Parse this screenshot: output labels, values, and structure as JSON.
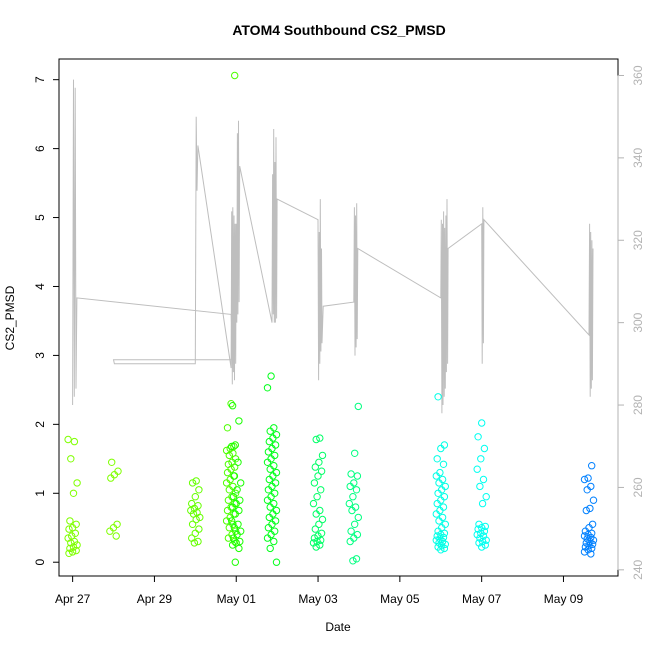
{
  "chart_data": {
    "type": "scatter",
    "title": "ATOM4 Southbound CS2_PMSD",
    "xlabel": "Date",
    "ylabel": "CS2_PMSD",
    "x_unit": "date",
    "xlim": [
      "2021-04-26T16:00",
      "2021-05-10T08:00"
    ],
    "ylim": [
      -0.2,
      7.3
    ],
    "y2lim": [
      238.5,
      364
    ],
    "x_ticks": [
      {
        "value": "2021-04-27",
        "label": "Apr 27"
      },
      {
        "value": "2021-04-29",
        "label": "Apr 29"
      },
      {
        "value": "2021-05-01",
        "label": "May 01"
      },
      {
        "value": "2021-05-03",
        "label": "May 03"
      },
      {
        "value": "2021-05-05",
        "label": "May 05"
      },
      {
        "value": "2021-05-07",
        "label": "May 07"
      },
      {
        "value": "2021-05-09",
        "label": "May 09"
      }
    ],
    "y_ticks": [
      0,
      1,
      2,
      3,
      4,
      5,
      6,
      7
    ],
    "y2_ticks": [
      240,
      260,
      280,
      300,
      320,
      340,
      360
    ],
    "grid": false,
    "legend": "none",
    "colors": {
      "line": "#bebebe",
      "right_axis": "#b3b3b3",
      "axis": "#000000"
    },
    "series": [
      {
        "kind": "points",
        "axis": "left",
        "clusters": [
          {
            "date": "2021-04-27T00:00",
            "color": "#7fff00",
            "y": [
              1.78,
              1.75,
              1.5,
              1.15,
              1.0,
              0.6,
              0.55,
              0.5,
              0.48,
              0.42,
              0.38,
              0.35,
              0.3,
              0.28,
              0.25,
              0.22,
              0.2,
              0.17,
              0.15,
              0.13
            ]
          },
          {
            "date": "2021-04-28T00:00",
            "color": "#7fff00",
            "y": [
              1.45,
              1.32,
              1.27,
              1.22,
              0.55,
              0.5,
              0.45,
              0.38
            ]
          },
          {
            "date": "2021-04-30T00:00",
            "color": "#66ff00",
            "y": [
              1.18,
              1.15,
              1.05,
              0.95,
              0.85,
              0.82,
              0.78,
              0.75,
              0.72,
              0.7,
              0.65,
              0.62,
              0.55,
              0.48,
              0.42,
              0.35,
              0.3,
              0.28
            ]
          },
          {
            "date": "2021-04-30T21:00",
            "color": "#4dff00",
            "y": [
              7.06,
              2.3,
              1.95,
              1.68,
              1.65,
              1.62,
              1.58,
              1.55,
              1.5,
              1.45,
              1.42,
              1.38,
              1.35,
              1.3,
              1.25,
              1.2,
              1.15,
              1.1,
              1.05,
              1.0,
              0.95,
              0.9,
              0.85,
              0.8,
              0.75,
              0.7,
              0.65,
              0.6,
              0.55,
              0.5,
              0.45,
              0.4,
              0.35,
              0.3
            ]
          },
          {
            "date": "2021-05-01T00:00",
            "color": "#1aff00",
            "y": [
              2.27,
              2.05,
              1.7,
              1.68,
              1.45,
              1.25,
              1.15,
              1.05,
              0.95,
              0.9,
              0.85,
              0.8,
              0.75,
              0.7,
              0.6,
              0.55,
              0.5,
              0.45,
              0.4,
              0.35,
              0.3,
              0.28,
              0.25,
              0.2,
              0.0
            ]
          },
          {
            "date": "2021-05-01T21:00",
            "color": "#00ff1a",
            "y": [
              2.7,
              2.53,
              1.95,
              1.9,
              1.85,
              1.8,
              1.75,
              1.7,
              1.65,
              1.6,
              1.55,
              1.5,
              1.45,
              1.4,
              1.35,
              1.3,
              1.25,
              1.2,
              1.15,
              1.1,
              1.05,
              1.0,
              0.95,
              0.9,
              0.85,
              0.8,
              0.75,
              0.7,
              0.65,
              0.6,
              0.55,
              0.5,
              0.45,
              0.4,
              0.35,
              0.3,
              0.2,
              0.0
            ]
          },
          {
            "date": "2021-05-03T00:00",
            "color": "#00ff66",
            "y": [
              1.8,
              1.78,
              1.55,
              1.45,
              1.38,
              1.32,
              1.25,
              1.15,
              1.05,
              0.95,
              0.85,
              0.75,
              0.7,
              0.62,
              0.55,
              0.48,
              0.42,
              0.38,
              0.35,
              0.32,
              0.3,
              0.28,
              0.25,
              0.22
            ]
          },
          {
            "date": "2021-05-03T21:00",
            "color": "#00ff80",
            "y": [
              2.26,
              1.58,
              1.28,
              1.25,
              1.15,
              1.1,
              1.05,
              0.95,
              0.85,
              0.8,
              0.75,
              0.65,
              0.55,
              0.45,
              0.4,
              0.35,
              0.3,
              0.05,
              0.02
            ]
          },
          {
            "date": "2021-05-06T00:00",
            "color": "#00ffe6",
            "y": [
              2.4,
              1.7,
              1.65,
              1.5,
              1.42,
              1.3,
              1.25,
              1.2,
              1.15,
              1.1,
              1.05,
              1.0,
              0.95,
              0.9,
              0.85,
              0.8,
              0.75,
              0.7,
              0.65,
              0.6,
              0.55,
              0.5,
              0.45,
              0.42,
              0.4,
              0.38,
              0.36,
              0.34,
              0.32,
              0.3,
              0.28,
              0.26,
              0.24,
              0.22,
              0.2,
              0.18
            ]
          },
          {
            "date": "2021-05-07T00:00",
            "color": "#00fff0",
            "y": [
              2.02,
              1.82,
              1.65,
              1.5,
              1.35,
              1.2,
              1.1,
              0.95,
              0.85,
              0.55,
              0.52,
              0.5,
              0.48,
              0.45,
              0.42,
              0.4,
              0.38,
              0.35,
              0.32,
              0.3,
              0.28,
              0.25,
              0.22
            ]
          },
          {
            "date": "2021-05-09T15:00",
            "color": "#0080ff",
            "y": [
              1.4,
              1.22,
              1.2,
              1.1,
              1.05,
              0.9,
              0.78,
              0.75,
              0.55,
              0.5,
              0.45,
              0.42,
              0.4,
              0.38,
              0.36,
              0.34,
              0.32,
              0.3,
              0.28,
              0.26,
              0.24,
              0.22,
              0.2,
              0.18,
              0.15,
              0.12
            ]
          }
        ]
      },
      {
        "kind": "line",
        "axis": "right",
        "color": "#bebebe",
        "points": [
          [
            "2021-04-27T00:00",
            280
          ],
          [
            "2021-04-27T00:30",
            359
          ],
          [
            "2021-04-27T01:00",
            282
          ],
          [
            "2021-04-27T01:30",
            357
          ],
          [
            "2021-04-27T02:00",
            284
          ],
          [
            "2021-04-27T02:30",
            306
          ],
          [
            "2021-04-30T21:00",
            302
          ],
          [
            "2021-04-30T21:30",
            291
          ],
          [
            "2021-04-28T00:00",
            291
          ],
          [
            "2021-04-28T00:30",
            290
          ],
          [
            "2021-04-30T00:00",
            290
          ],
          [
            "2021-04-30T00:30",
            350
          ],
          [
            "2021-04-30T01:00",
            332
          ],
          [
            "2021-04-30T01:30",
            343
          ],
          [
            "2021-04-30T21:00",
            289
          ],
          [
            "2021-04-30T21:20",
            327
          ],
          [
            "2021-04-30T21:40",
            285
          ],
          [
            "2021-04-30T22:00",
            328
          ],
          [
            "2021-04-30T22:20",
            288
          ],
          [
            "2021-04-30T22:40",
            326
          ],
          [
            "2021-04-30T23:00",
            286
          ],
          [
            "2021-04-30T23:20",
            324
          ],
          [
            "2021-04-30T23:40",
            290
          ],
          [
            "2021-05-01T00:00",
            324
          ],
          [
            "2021-05-01T00:20",
            300
          ],
          [
            "2021-05-01T00:40",
            346
          ],
          [
            "2021-05-01T01:00",
            302
          ],
          [
            "2021-05-01T01:20",
            349
          ],
          [
            "2021-05-01T01:40",
            305
          ],
          [
            "2021-05-01T02:00",
            338
          ],
          [
            "2021-05-01T21:00",
            300
          ],
          [
            "2021-05-01T21:20",
            336
          ],
          [
            "2021-05-01T21:40",
            302
          ],
          [
            "2021-05-01T22:00",
            347
          ],
          [
            "2021-05-01T22:20",
            300
          ],
          [
            "2021-05-01T22:40",
            339
          ],
          [
            "2021-05-01T23:00",
            300
          ],
          [
            "2021-05-01T23:20",
            345
          ],
          [
            "2021-05-01T23:40",
            301
          ],
          [
            "2021-05-02T00:00",
            330
          ],
          [
            "2021-05-03T00:00",
            325
          ],
          [
            "2021-05-03T00:20",
            286
          ],
          [
            "2021-05-03T00:40",
            322
          ],
          [
            "2021-05-03T01:00",
            290
          ],
          [
            "2021-05-03T01:20",
            330
          ],
          [
            "2021-05-03T01:40",
            293
          ],
          [
            "2021-05-03T02:00",
            318
          ],
          [
            "2021-05-03T02:20",
            295
          ],
          [
            "2021-05-03T03:00",
            304
          ],
          [
            "2021-05-03T21:00",
            305
          ],
          [
            "2021-05-03T21:20",
            328
          ],
          [
            "2021-05-03T21:40",
            292
          ],
          [
            "2021-05-03T22:00",
            326
          ],
          [
            "2021-05-03T22:20",
            294
          ],
          [
            "2021-05-03T22:40",
            329
          ],
          [
            "2021-05-03T23:00",
            296
          ],
          [
            "2021-05-03T23:20",
            318
          ],
          [
            "2021-05-06T00:00",
            306
          ],
          [
            "2021-05-06T00:20",
            325
          ],
          [
            "2021-05-06T00:40",
            278
          ],
          [
            "2021-05-06T01:00",
            324
          ],
          [
            "2021-05-06T01:20",
            280
          ],
          [
            "2021-05-06T01:40",
            327
          ],
          [
            "2021-05-06T02:00",
            282
          ],
          [
            "2021-05-06T02:20",
            323
          ],
          [
            "2021-05-06T02:40",
            284
          ],
          [
            "2021-05-06T03:00",
            326
          ],
          [
            "2021-05-06T03:20",
            288
          ],
          [
            "2021-05-06T03:40",
            330
          ],
          [
            "2021-05-06T04:00",
            290
          ],
          [
            "2021-05-06T04:20",
            318
          ],
          [
            "2021-05-07T00:00",
            324
          ],
          [
            "2021-05-07T00:20",
            290
          ],
          [
            "2021-05-07T00:40",
            328
          ],
          [
            "2021-05-07T01:00",
            295
          ],
          [
            "2021-05-07T01:20",
            325
          ],
          [
            "2021-05-09T15:00",
            297
          ],
          [
            "2021-05-09T15:20",
            324
          ],
          [
            "2021-05-09T15:40",
            282
          ],
          [
            "2021-05-09T16:00",
            322
          ],
          [
            "2021-05-09T16:20",
            284
          ],
          [
            "2021-05-09T16:40",
            320
          ],
          [
            "2021-05-09T17:00",
            286
          ],
          [
            "2021-05-09T17:20",
            318
          ]
        ]
      }
    ]
  }
}
